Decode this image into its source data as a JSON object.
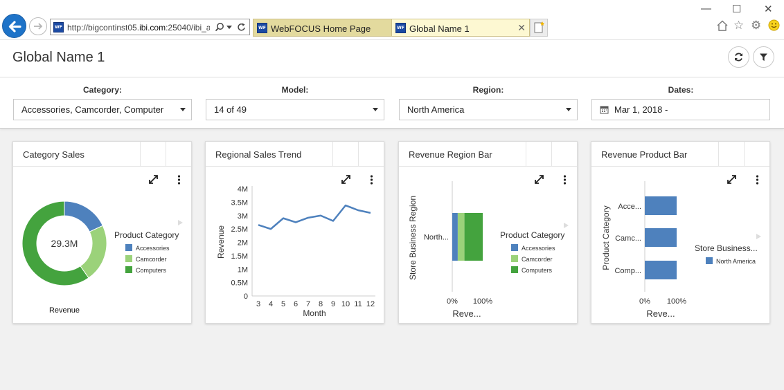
{
  "browser": {
    "url_prefix": "http://bigcontinst05.",
    "url_domain": "ibi.com",
    "url_suffix": ":25040/ibi_a",
    "tabs": [
      {
        "label": "WebFOCUS Home Page",
        "icon": "webfocus-icon",
        "active": false
      },
      {
        "label": "Global Name 1",
        "icon": "webfocus-icon",
        "active": true
      }
    ],
    "icons": [
      "back-arrow-icon",
      "forward-arrow-icon",
      "search-icon",
      "dropdown-arrow-icon",
      "refresh-icon",
      "close-icon",
      "new-tab-icon",
      "minimize-icon",
      "maximize-icon",
      "close-window-icon",
      "home-icon",
      "star-icon",
      "gear-icon",
      "smiley-icon"
    ],
    "wf_icon_text": "WF"
  },
  "page": {
    "title": "Global Name 1",
    "actions": [
      "refresh-icon",
      "filter-icon"
    ]
  },
  "filters": [
    {
      "label": "Category:",
      "value": "Accessories, Camcorder, Computer"
    },
    {
      "label": "Model:",
      "value": "14 of 49"
    },
    {
      "label": "Region:",
      "value": "North America"
    },
    {
      "label": "Dates:",
      "value": "Mar 1, 2018 -",
      "icon": "calendar-icon"
    }
  ],
  "colors": {
    "accessories": "#4e81bd",
    "camcorder": "#9bd27a",
    "computers": "#44a33e",
    "north_america": "#4e81bd",
    "browser_back": "#1e73c8",
    "tab_inactive": "#e3da9e",
    "tab_active": "#fdf8d2"
  },
  "cards": [
    {
      "title": "Category Sales",
      "icons": [
        "expand-icon",
        "more-vertical-icon"
      ]
    },
    {
      "title": "Regional Sales Trend",
      "icons": [
        "expand-icon",
        "more-vertical-icon"
      ]
    },
    {
      "title": "Revenue Region Bar",
      "icons": [
        "expand-icon",
        "more-vertical-icon"
      ]
    },
    {
      "title": "Revenue Product Bar",
      "icons": [
        "expand-icon",
        "more-vertical-icon"
      ]
    }
  ],
  "chart_data": [
    {
      "type": "pie",
      "variant": "donut",
      "center_label": "29.3M",
      "xlabel": "Revenue",
      "legend_title": "Product Category",
      "legend_position": "right",
      "categories": [
        "Accessories",
        "Camcorder",
        "Computers"
      ],
      "values": [
        5.3,
        6.5,
        17.5
      ]
    },
    {
      "type": "line",
      "xlabel": "Month",
      "ylabel": "Revenue",
      "x": [
        3,
        4,
        5,
        6,
        7,
        8,
        9,
        10,
        11,
        12
      ],
      "values": [
        2.65,
        2.5,
        2.9,
        2.75,
        2.92,
        3.0,
        2.8,
        3.38,
        3.2,
        3.1
      ],
      "y_ticks": [
        "0",
        "0.5M",
        "1M",
        "1.5M",
        "2M",
        "2.5M",
        "3M",
        "3.5M",
        "4M"
      ],
      "ylim": [
        0,
        4
      ],
      "grid": false
    },
    {
      "type": "bar",
      "orientation": "horizontal",
      "stacked": "percent",
      "xlabel": "Reve...",
      "ylabel": "Store Business Region",
      "categories": [
        "North..."
      ],
      "series": [
        {
          "name": "Accessories",
          "values": [
            18
          ]
        },
        {
          "name": "Camcorder",
          "values": [
            22
          ]
        },
        {
          "name": "Computers",
          "values": [
            60
          ]
        }
      ],
      "x_ticks": [
        "0%",
        "100%"
      ],
      "xlim": [
        0,
        100
      ],
      "legend_title": "Product Category",
      "legend_position": "right"
    },
    {
      "type": "bar",
      "orientation": "horizontal",
      "stacked": "percent",
      "xlabel": "Reve...",
      "ylabel": "Product Category",
      "categories": [
        "Acce...",
        "Camc...",
        "Comp..."
      ],
      "series": [
        {
          "name": "North America",
          "values": [
            100,
            100,
            100
          ]
        }
      ],
      "x_ticks": [
        "0%",
        "100%"
      ],
      "xlim": [
        0,
        100
      ],
      "legend_title": "Store Business...",
      "legend_position": "right"
    }
  ]
}
